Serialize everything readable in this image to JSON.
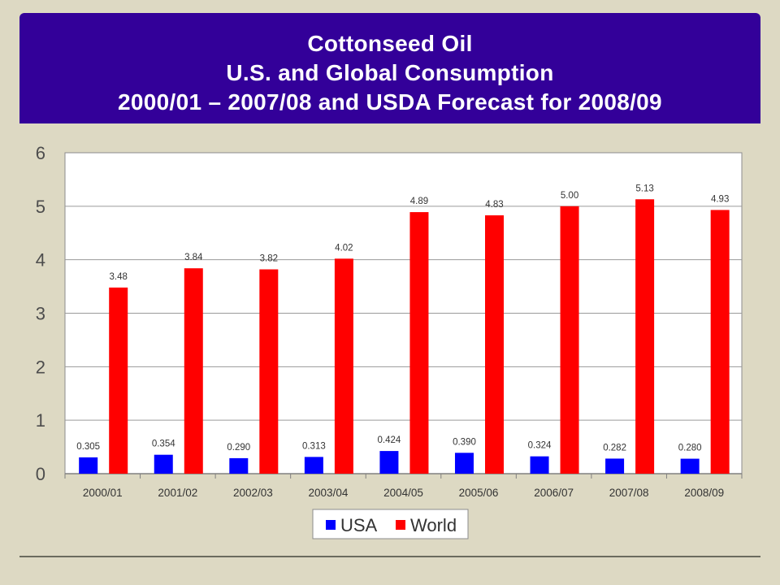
{
  "slide": {
    "title_lines": [
      "Cottonseed Oil",
      "U.S. and Global Consumption",
      "2000/01 – 2007/08 and USDA Forecast for 2008/09"
    ]
  },
  "chart_data": {
    "type": "bar",
    "categories": [
      "2000/01",
      "2001/02",
      "2002/03",
      "2003/04",
      "2004/05",
      "2005/06",
      "2006/07",
      "2007/08",
      "2008/09"
    ],
    "series": [
      {
        "name": "USA",
        "color": "#0000ff",
        "values": [
          0.305,
          0.354,
          0.29,
          0.313,
          0.424,
          0.39,
          0.324,
          0.282,
          0.28
        ],
        "labels": [
          "0.305",
          "0.354",
          "0.290",
          "0.313",
          "0.424",
          "0.390",
          "0.324",
          "0.282",
          "0.280"
        ]
      },
      {
        "name": "World",
        "color": "#ff0000",
        "values": [
          3.48,
          3.84,
          3.82,
          4.02,
          4.89,
          4.83,
          5.0,
          5.13,
          4.93
        ],
        "labels": [
          "3.48",
          "3.84",
          "3.82",
          "4.02",
          "4.89",
          "4.83",
          "5.00",
          "5.13",
          "4.93"
        ]
      }
    ],
    "yticks": [
      "0",
      "1",
      "2",
      "3",
      "4",
      "5",
      "6"
    ],
    "ylim": [
      0,
      6
    ],
    "grid": true,
    "legend_position": "bottom-center",
    "plot_background": "#ffffff"
  }
}
